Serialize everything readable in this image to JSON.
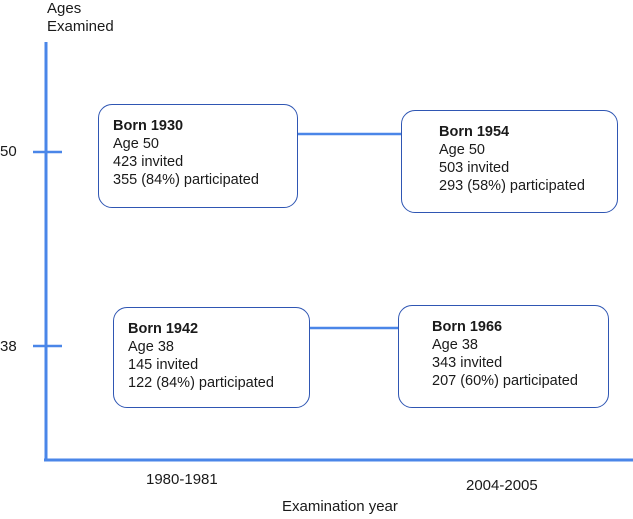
{
  "y_axis": {
    "label_line1": "Ages",
    "label_line2": "Examined",
    "ticks": [
      "50",
      "38"
    ]
  },
  "x_axis": {
    "label": "Examination year",
    "ticks": [
      "1980-1981",
      "2004-2005"
    ]
  },
  "cohorts": [
    {
      "title": "Born 1930",
      "age": "Age 50",
      "invited": "423 invited",
      "participated": "355 (84%) participated"
    },
    {
      "title": "Born 1954",
      "age": "Age 50",
      "invited": "503 invited",
      "participated": "293 (58%) participated"
    },
    {
      "title": "Born 1942",
      "age": "Age 38",
      "invited": "145 invited",
      "participated": "122 (84%) participated"
    },
    {
      "title": "Born 1966",
      "age": "Age 38",
      "invited": "343 invited",
      "participated": "207 (60%) participated"
    }
  ],
  "colors": {
    "axis": "#4a86e8",
    "box_border": "#2f56b3",
    "arrow": "#4a86e8"
  }
}
